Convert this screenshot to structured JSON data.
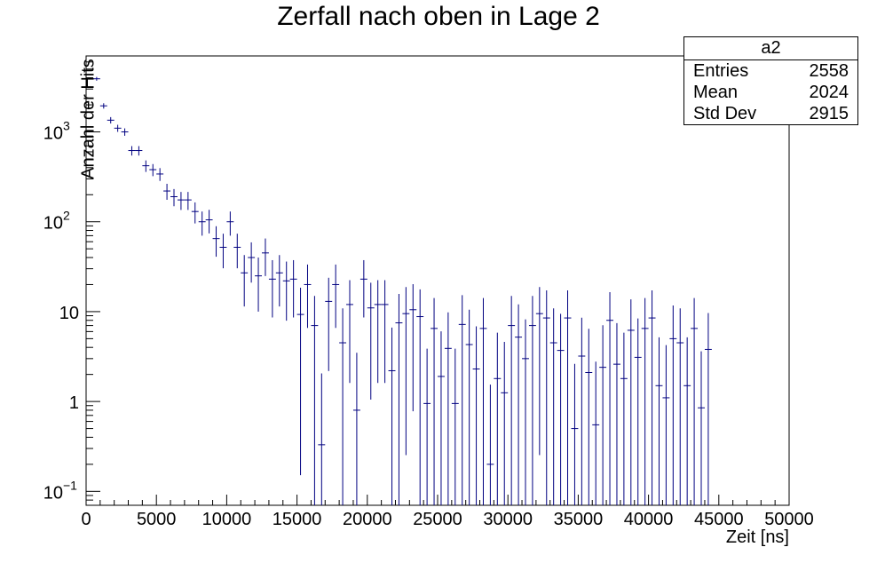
{
  "chart_data": {
    "type": "scatter",
    "title": "Zerfall nach oben in Lage 2",
    "xlabel": "Zeit [ns]",
    "ylabel": "Anzahl der Hits",
    "xlim": [
      0,
      50000
    ],
    "ylim": [
      0.07,
      7000
    ],
    "yscale": "log",
    "grid": false,
    "bin_width": 500,
    "x_ticks": [
      "0",
      "5000",
      "10000",
      "15000",
      "20000",
      "25000",
      "30000",
      "35000",
      "40000",
      "45000",
      "50000"
    ],
    "y_ticks": [
      {
        "value": 0.1,
        "label": "10",
        "sup": "−1"
      },
      {
        "value": 1,
        "label": "1",
        "sup": ""
      },
      {
        "value": 10,
        "label": "10",
        "sup": ""
      },
      {
        "value": 100,
        "label": "10",
        "sup": "2"
      },
      {
        "value": 1000,
        "label": "10",
        "sup": "3"
      }
    ],
    "colors": {
      "marker": "#000080",
      "axes": "#000000"
    },
    "stats": {
      "name": "a2",
      "rows": [
        {
          "label": "Entries",
          "value": "2558"
        },
        {
          "label": "Mean",
          "value": "2024"
        },
        {
          "label": "Std Dev",
          "value": "2915"
        }
      ]
    },
    "series": [
      {
        "points": [
          [
            750,
            3900
          ],
          [
            1250,
            1950
          ],
          [
            1750,
            1350
          ],
          [
            2250,
            1100
          ],
          [
            2750,
            1000
          ],
          [
            3250,
            620
          ],
          [
            3750,
            620
          ],
          [
            4250,
            420
          ],
          [
            4750,
            380
          ],
          [
            5250,
            340
          ],
          [
            5750,
            220
          ],
          [
            6250,
            190
          ],
          [
            6750,
            175
          ],
          [
            7250,
            175
          ],
          [
            7750,
            130
          ],
          [
            8250,
            100
          ],
          [
            8750,
            105
          ],
          [
            9250,
            65
          ],
          [
            9750,
            52
          ],
          [
            10250,
            100
          ],
          [
            10750,
            52
          ],
          [
            11250,
            27
          ],
          [
            11750,
            40
          ],
          [
            12250,
            25
          ],
          [
            12750,
            45
          ],
          [
            13250,
            23
          ],
          [
            13750,
            27
          ],
          [
            14250,
            22
          ],
          [
            14750,
            23
          ],
          [
            15250,
            9.3
          ],
          [
            15750,
            20
          ],
          [
            16250,
            7.0
          ],
          [
            16750,
            0.33
          ],
          [
            17250,
            13
          ],
          [
            17750,
            20
          ],
          [
            18250,
            4.5
          ],
          [
            18750,
            12
          ],
          [
            19250,
            0.8
          ],
          [
            19750,
            23
          ],
          [
            20250,
            11
          ],
          [
            20750,
            12
          ],
          [
            21250,
            12
          ],
          [
            21750,
            2.2
          ],
          [
            22250,
            7.5
          ],
          [
            22750,
            9.5
          ],
          [
            23250,
            10.5
          ],
          [
            23750,
            8.8
          ],
          [
            24250,
            0.95
          ],
          [
            24750,
            6.5
          ],
          [
            25250,
            1.9
          ],
          [
            25750,
            3.9
          ],
          [
            26250,
            0.95
          ],
          [
            26750,
            7.2
          ],
          [
            27250,
            4.3
          ],
          [
            27750,
            2.3
          ],
          [
            28250,
            6.5
          ],
          [
            28750,
            0.2
          ],
          [
            29250,
            1.8
          ],
          [
            29750,
            1.25
          ],
          [
            30250,
            7.0
          ],
          [
            30750,
            5.2
          ],
          [
            31250,
            3.0
          ],
          [
            31750,
            7.0
          ],
          [
            32250,
            9.5
          ],
          [
            32750,
            8.5
          ],
          [
            33250,
            4.5
          ],
          [
            33750,
            3.7
          ],
          [
            34250,
            8.5
          ],
          [
            34750,
            0.5
          ],
          [
            35250,
            3.2
          ],
          [
            35750,
            2.1
          ],
          [
            36250,
            0.55
          ],
          [
            36750,
            2.4
          ],
          [
            37250,
            8.0
          ],
          [
            37750,
            2.6
          ],
          [
            38250,
            1.8
          ],
          [
            38750,
            6.2
          ],
          [
            39250,
            3.1
          ],
          [
            39750,
            6.5
          ],
          [
            40250,
            8.5
          ],
          [
            40750,
            1.5
          ],
          [
            41250,
            1.1
          ],
          [
            41750,
            5.0
          ],
          [
            42250,
            4.5
          ],
          [
            42750,
            1.5
          ],
          [
            43250,
            6.5
          ],
          [
            43750,
            0.85
          ],
          [
            44250,
            3.8
          ]
        ]
      }
    ]
  }
}
